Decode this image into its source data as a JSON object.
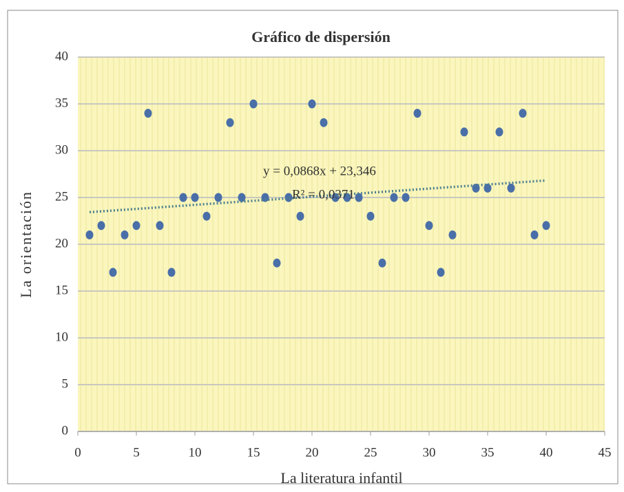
{
  "chart_data": {
    "type": "scatter",
    "title": "Gráfico de dispersión",
    "x_label": "La literatura infantil",
    "y_label": "La orientación",
    "x": [
      1,
      2,
      3,
      4,
      5,
      6,
      7,
      8,
      9,
      10,
      11,
      12,
      13,
      14,
      15,
      16,
      17,
      18,
      19,
      20,
      21,
      22,
      23,
      24,
      25,
      26,
      27,
      28,
      29,
      30,
      31,
      32,
      33,
      34,
      35,
      36,
      37,
      38,
      39,
      40
    ],
    "y": [
      21,
      22,
      17,
      21,
      22,
      34,
      22,
      17,
      25,
      25,
      23,
      25,
      33,
      25,
      35,
      25,
      18,
      25,
      23,
      35,
      33,
      25,
      25,
      25,
      23,
      18,
      25,
      25,
      34,
      22,
      17,
      21,
      32,
      26,
      26,
      32,
      26,
      34,
      21,
      22
    ],
    "color": "#4a6fa8",
    "xlim": [
      0,
      45
    ],
    "xticks": [
      0,
      5,
      10,
      15,
      20,
      25,
      30,
      35,
      40,
      45
    ],
    "ylim": [
      0,
      40
    ],
    "yticks": [
      0,
      5,
      10,
      15,
      20,
      25,
      30,
      35,
      40
    ],
    "grid": true,
    "trendline": {
      "slope": 0.0868,
      "intercept": 23.346,
      "equation": "y = 0,0868x + 23,346",
      "r2": "R² = 0,0371",
      "color": "#4d7f8f"
    }
  }
}
